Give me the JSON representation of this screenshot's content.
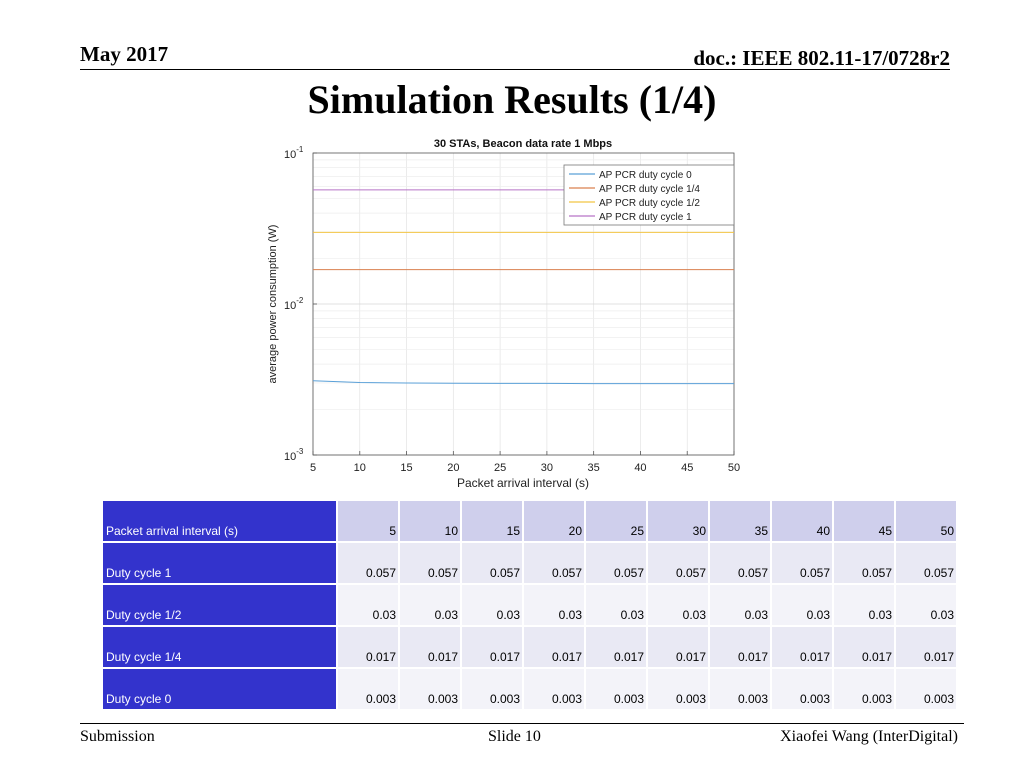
{
  "header": {
    "date": "May 2017",
    "doc": "doc.: IEEE 802.11-17/0728r2"
  },
  "slide_title": "Simulation Results (1/4)",
  "footer": {
    "left": "Submission",
    "center": "Slide 10",
    "right": "Xiaofei Wang (InterDigital)"
  },
  "chart_data": {
    "type": "line",
    "title": "30 STAs, Beacon data rate 1 Mbps",
    "xlabel": "Packet arrival interval (s)",
    "ylabel": "average power consumption (W)",
    "yscale": "log",
    "xlim": [
      5,
      50
    ],
    "ylim": [
      0.001,
      0.1
    ],
    "x_ticks": [
      5,
      10,
      15,
      20,
      25,
      30,
      35,
      40,
      45,
      50
    ],
    "y_ticks": [
      {
        "value": 0.001,
        "base": "10",
        "exp": "-3"
      },
      {
        "value": 0.01,
        "base": "10",
        "exp": "-2"
      },
      {
        "value": 0.1,
        "base": "10",
        "exp": "-1"
      }
    ],
    "legend_position": "top-right",
    "x": [
      5,
      10,
      15,
      20,
      25,
      30,
      35,
      40,
      45,
      50
    ],
    "series": [
      {
        "name": "AP PCR duty cycle 0",
        "color": "#5aa0d8",
        "values": [
          0.0031,
          0.00302,
          0.003,
          0.00299,
          0.00298,
          0.00298,
          0.00297,
          0.00297,
          0.00297,
          0.00297
        ]
      },
      {
        "name": "AP PCR duty cycle 1/4",
        "color": "#d9804f",
        "values": [
          0.0169,
          0.0169,
          0.0169,
          0.0169,
          0.0169,
          0.0169,
          0.0169,
          0.0169,
          0.0169,
          0.0169
        ]
      },
      {
        "name": "AP PCR duty cycle 1/2",
        "color": "#f2c544",
        "values": [
          0.0298,
          0.0298,
          0.0298,
          0.0298,
          0.0298,
          0.0298,
          0.0298,
          0.0298,
          0.0298,
          0.0298
        ]
      },
      {
        "name": "AP PCR duty cycle 1",
        "color": "#b774c7",
        "values": [
          0.057,
          0.057,
          0.057,
          0.057,
          0.057,
          0.057,
          0.057,
          0.057,
          0.057,
          0.057
        ]
      }
    ]
  },
  "table": {
    "header_label": "Packet arrival interval (s)",
    "columns": [
      "5",
      "10",
      "15",
      "20",
      "25",
      "30",
      "35",
      "40",
      "45",
      "50"
    ],
    "rows": [
      {
        "label": "Duty cycle 1",
        "values": [
          "0.057",
          "0.057",
          "0.057",
          "0.057",
          "0.057",
          "0.057",
          "0.057",
          "0.057",
          "0.057",
          "0.057"
        ]
      },
      {
        "label": "Duty cycle 1/2",
        "values": [
          "0.03",
          "0.03",
          "0.03",
          "0.03",
          "0.03",
          "0.03",
          "0.03",
          "0.03",
          "0.03",
          "0.03"
        ]
      },
      {
        "label": "Duty cycle 1/4",
        "values": [
          "0.017",
          "0.017",
          "0.017",
          "0.017",
          "0.017",
          "0.017",
          "0.017",
          "0.017",
          "0.017",
          "0.017"
        ]
      },
      {
        "label": "Duty cycle 0",
        "values": [
          "0.003",
          "0.003",
          "0.003",
          "0.003",
          "0.003",
          "0.003",
          "0.003",
          "0.003",
          "0.003",
          "0.003"
        ]
      }
    ]
  }
}
